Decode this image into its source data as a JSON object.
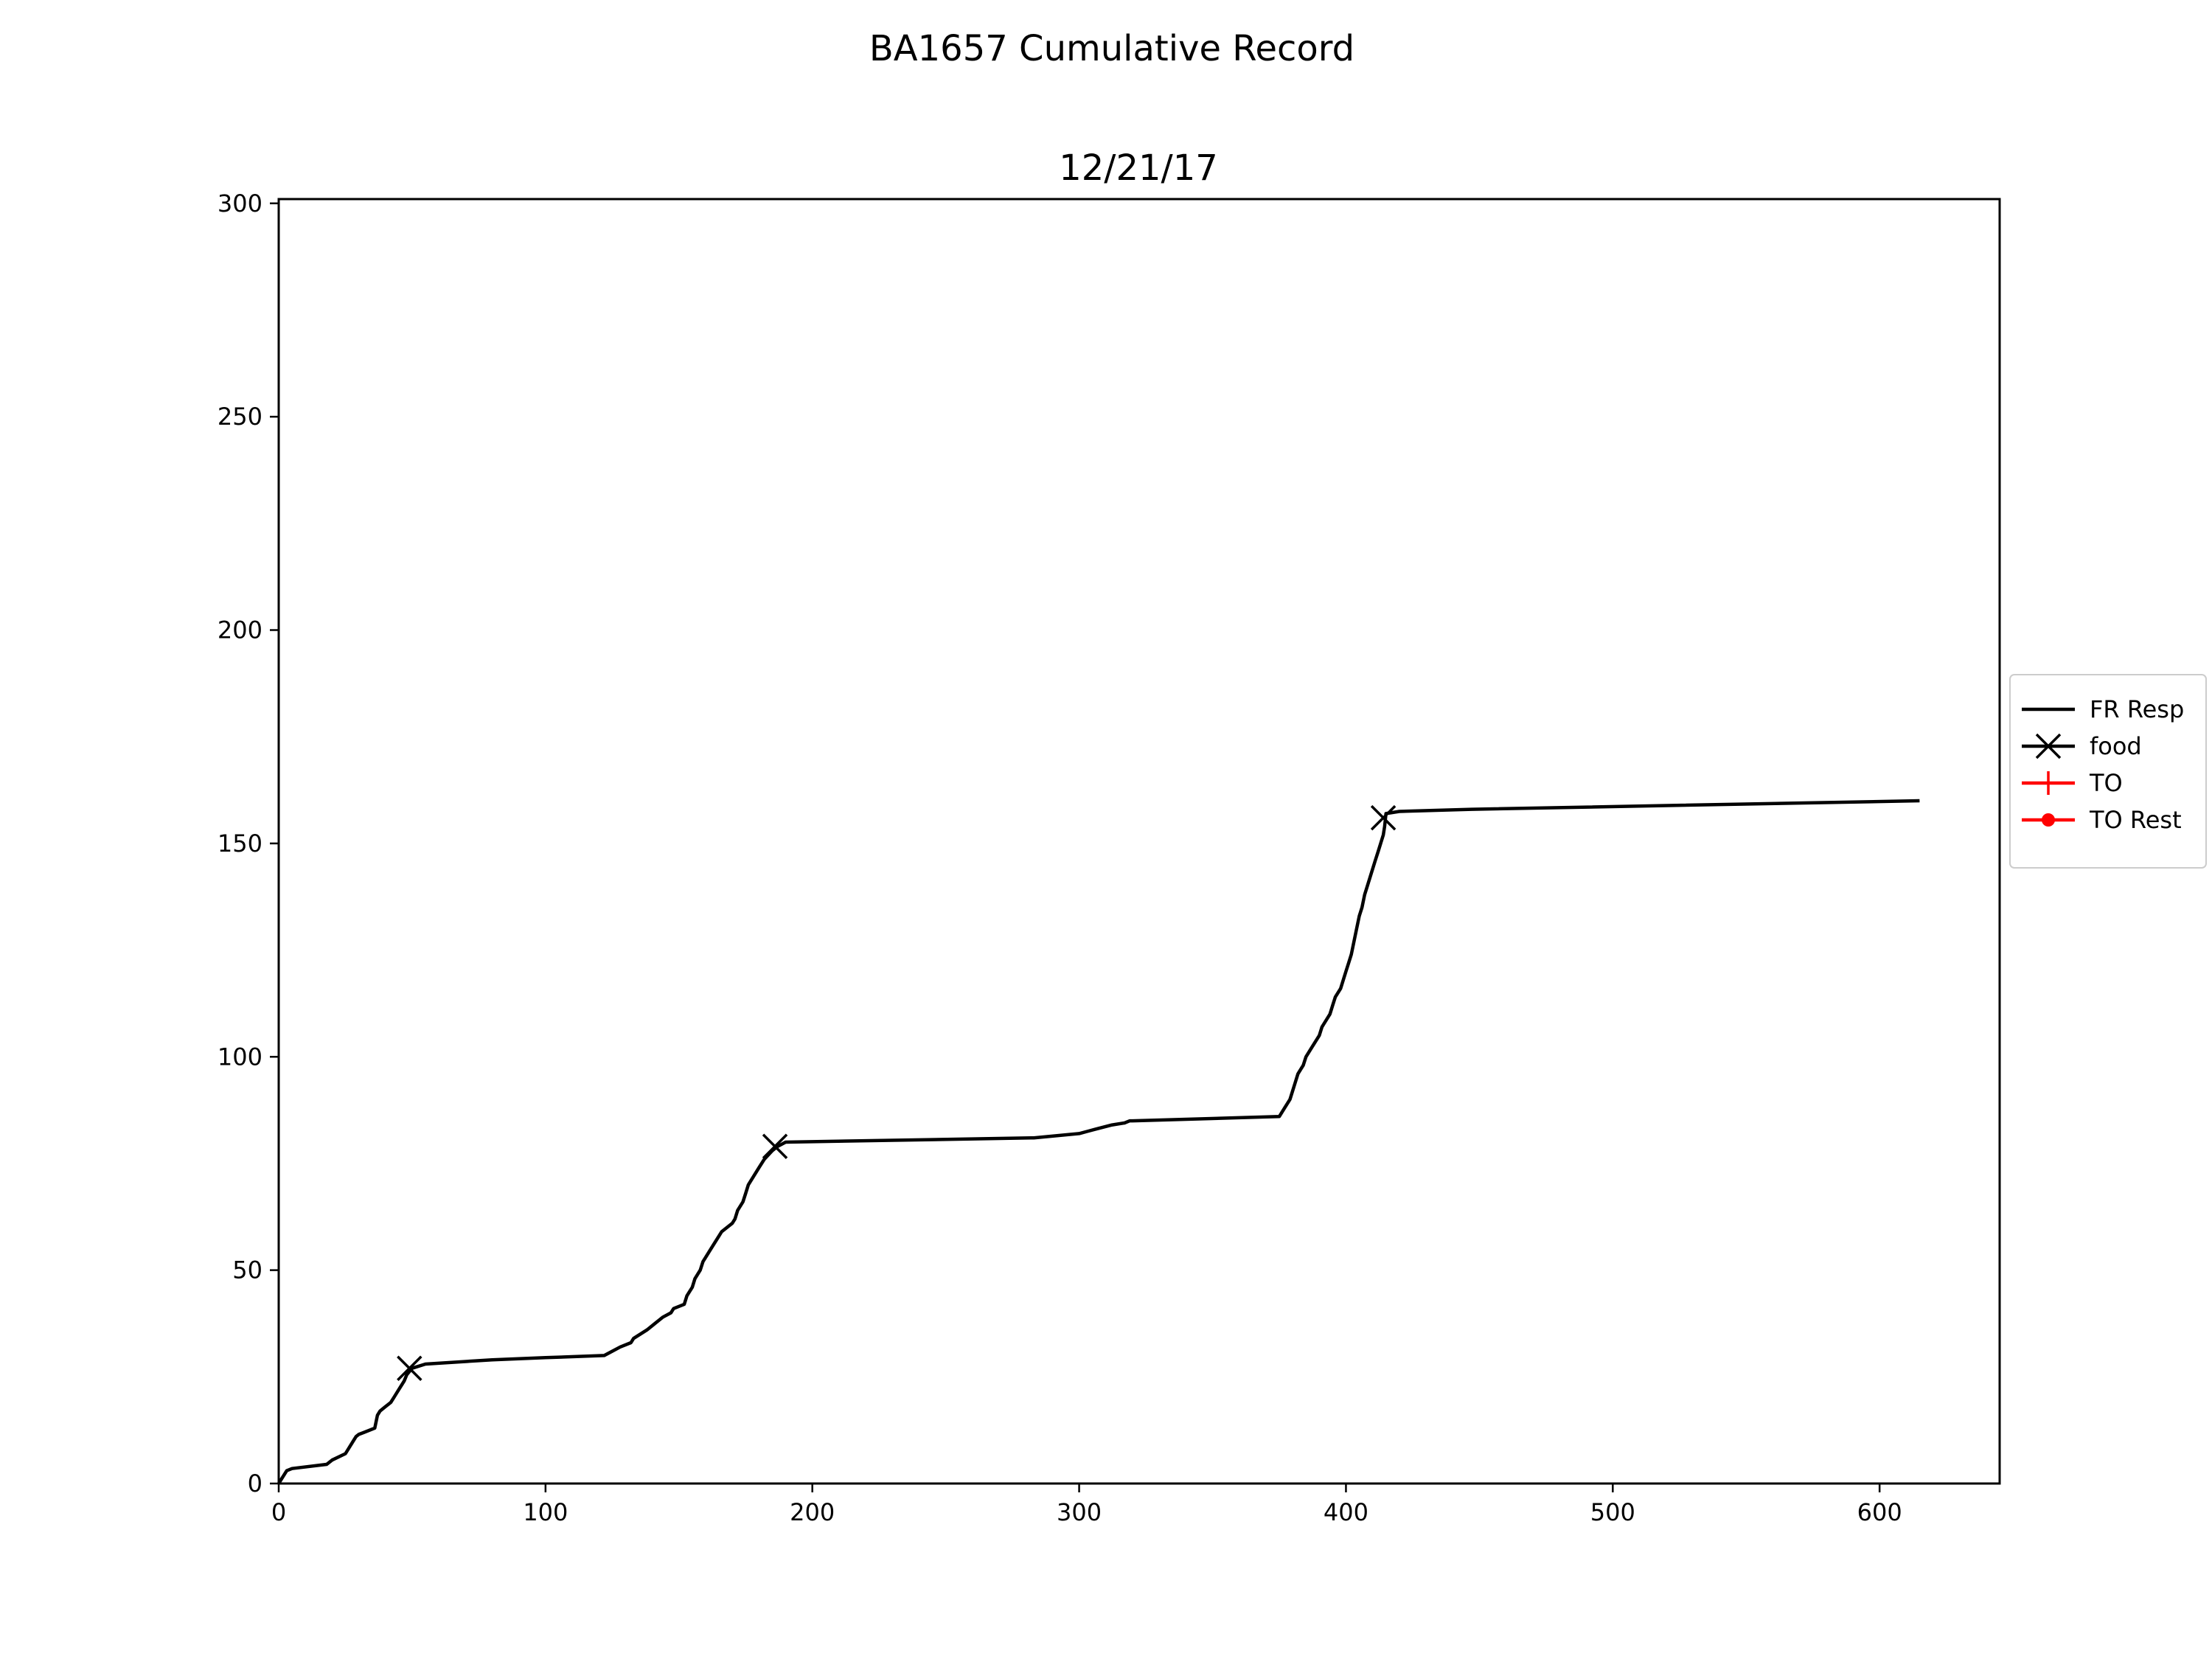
{
  "chart_data": {
    "type": "line",
    "suptitle": "BA1657 Cumulative Record",
    "title": "12/21/17",
    "xlabel": "",
    "ylabel": "",
    "xlim": [
      0,
      645
    ],
    "ylim": [
      0,
      301
    ],
    "xticks": [
      0,
      100,
      200,
      300,
      400,
      500,
      600
    ],
    "yticks": [
      0,
      50,
      100,
      150,
      200,
      250,
      300
    ],
    "grid": false,
    "legend_position": "center-right-outside",
    "series": [
      {
        "name": "FR Resp",
        "color": "#000000",
        "marker": "none",
        "x": [
          0,
          1,
          2,
          3,
          5,
          18,
          20,
          25,
          28,
          29,
          30,
          32,
          36,
          37,
          38,
          40,
          42,
          43,
          44,
          45,
          47,
          48,
          50,
          55,
          80,
          100,
          122,
          125,
          128,
          132,
          133,
          138,
          142,
          144,
          147,
          148,
          152,
          153,
          155,
          156,
          158,
          159,
          160,
          162,
          163,
          165,
          166,
          170,
          171,
          172,
          174,
          175,
          176,
          178,
          180,
          182,
          185,
          187,
          190,
          283,
          300,
          303,
          306,
          312,
          317,
          319,
          320,
          375,
          377,
          379,
          380,
          381,
          382,
          383,
          384,
          385,
          387,
          388,
          390,
          391,
          392,
          394,
          395,
          396,
          398,
          399,
          400,
          401,
          402,
          403,
          404,
          405,
          406,
          407,
          408,
          409,
          410,
          411,
          412,
          413,
          414,
          414.5,
          415,
          420,
          447,
          615
        ],
        "y": [
          0,
          1,
          2,
          3,
          3.5,
          4.5,
          5.5,
          7,
          10,
          11,
          11.5,
          12,
          13,
          16,
          17,
          18,
          19,
          20,
          21,
          22,
          24,
          25.5,
          27,
          28,
          29,
          29.5,
          30,
          31,
          32,
          33,
          34,
          36,
          38,
          39,
          40,
          41,
          42,
          44,
          46,
          48,
          50,
          52,
          53,
          55,
          56,
          58,
          59,
          61,
          62,
          64,
          66,
          68,
          70,
          72,
          74,
          76,
          78,
          79,
          80,
          81,
          82,
          82.5,
          83,
          84,
          84.5,
          85,
          85,
          86,
          88,
          90,
          92,
          94,
          96,
          97,
          98,
          100,
          102,
          103,
          105,
          107,
          108,
          110,
          112,
          114,
          116,
          118,
          120,
          122,
          124,
          127,
          130,
          133,
          135,
          138,
          140,
          142,
          144,
          146,
          148,
          150,
          152,
          154,
          157,
          157.5,
          158,
          160
        ]
      },
      {
        "name": "food",
        "color": "#000000",
        "marker": "x",
        "x": [
          49,
          186,
          414
        ],
        "y": [
          27,
          79,
          156
        ]
      },
      {
        "name": "TO",
        "color": "#ff0000",
        "marker": "+",
        "x": [],
        "y": []
      },
      {
        "name": "TO Rest",
        "color": "#ff0000",
        "marker": "o",
        "x": [],
        "y": []
      }
    ]
  }
}
